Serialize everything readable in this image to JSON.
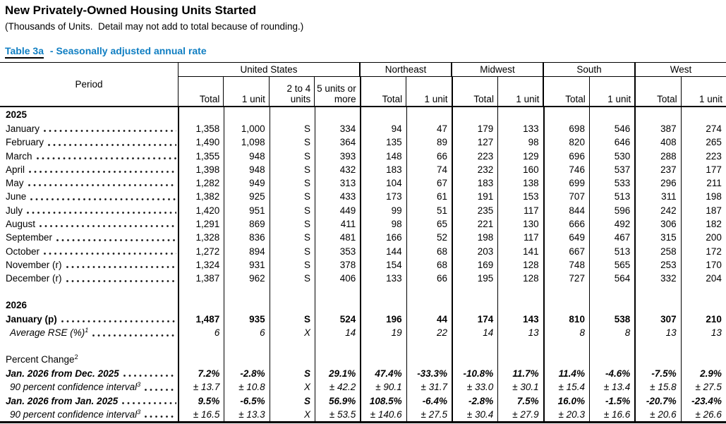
{
  "page": {
    "title": "New Privately-Owned Housing Units Started",
    "subtitle": "(Thousands of Units.  Detail may not add to total because of rounding.)",
    "table_label": "Table 3a",
    "table_label_suffix": "- Seasonally adjusted annual rate"
  },
  "colors": {
    "caption_blue": "#0f7ec2",
    "border_black": "#000000",
    "background": "#ffffff"
  },
  "header": {
    "period": "Period",
    "groups": [
      {
        "label": "United States",
        "span": 4,
        "cols": [
          "Total",
          "1 unit",
          "2 to 4 units",
          "5 units or more"
        ]
      },
      {
        "label": "Northeast",
        "span": 2,
        "cols": [
          "Total",
          "1 unit"
        ]
      },
      {
        "label": "Midwest",
        "span": 2,
        "cols": [
          "Total",
          "1 unit"
        ]
      },
      {
        "label": "South",
        "span": 2,
        "cols": [
          "Total",
          "1 unit"
        ]
      },
      {
        "label": "West",
        "span": 2,
        "cols": [
          "Total",
          "1 unit"
        ]
      }
    ]
  },
  "rows": [
    {
      "type": "section",
      "label": "2025",
      "style": "bold"
    },
    {
      "type": "data",
      "label": "January",
      "style": "normal",
      "leader": true,
      "values": [
        "1,358",
        "1,000",
        "S",
        "334",
        "94",
        "47",
        "179",
        "133",
        "698",
        "546",
        "387",
        "274"
      ]
    },
    {
      "type": "data",
      "label": "February",
      "style": "normal",
      "leader": true,
      "values": [
        "1,490",
        "1,098",
        "S",
        "364",
        "135",
        "89",
        "127",
        "98",
        "820",
        "646",
        "408",
        "265"
      ]
    },
    {
      "type": "data",
      "label": "March",
      "style": "normal",
      "leader": true,
      "values": [
        "1,355",
        "948",
        "S",
        "393",
        "148",
        "66",
        "223",
        "129",
        "696",
        "530",
        "288",
        "223"
      ]
    },
    {
      "type": "data",
      "label": "April",
      "style": "normal",
      "leader": true,
      "values": [
        "1,398",
        "948",
        "S",
        "432",
        "183",
        "74",
        "232",
        "160",
        "746",
        "537",
        "237",
        "177"
      ]
    },
    {
      "type": "data",
      "label": "May",
      "style": "normal",
      "leader": true,
      "values": [
        "1,282",
        "949",
        "S",
        "313",
        "104",
        "67",
        "183",
        "138",
        "699",
        "533",
        "296",
        "211"
      ]
    },
    {
      "type": "data",
      "label": "June",
      "style": "normal",
      "leader": true,
      "values": [
        "1,382",
        "925",
        "S",
        "433",
        "173",
        "61",
        "191",
        "153",
        "707",
        "513",
        "311",
        "198"
      ]
    },
    {
      "type": "data",
      "label": "July",
      "style": "normal",
      "leader": true,
      "values": [
        "1,420",
        "951",
        "S",
        "449",
        "99",
        "51",
        "235",
        "117",
        "844",
        "596",
        "242",
        "187"
      ]
    },
    {
      "type": "data",
      "label": "August",
      "style": "normal",
      "leader": true,
      "values": [
        "1,291",
        "869",
        "S",
        "411",
        "98",
        "65",
        "221",
        "130",
        "666",
        "492",
        "306",
        "182"
      ]
    },
    {
      "type": "data",
      "label": "September",
      "style": "normal",
      "leader": true,
      "values": [
        "1,328",
        "836",
        "S",
        "481",
        "166",
        "52",
        "198",
        "117",
        "649",
        "467",
        "315",
        "200"
      ]
    },
    {
      "type": "data",
      "label": "October",
      "style": "normal",
      "leader": true,
      "values": [
        "1,272",
        "894",
        "S",
        "353",
        "144",
        "68",
        "203",
        "141",
        "667",
        "513",
        "258",
        "172"
      ]
    },
    {
      "type": "data",
      "label": "November (r)",
      "style": "normal",
      "leader": true,
      "values": [
        "1,324",
        "931",
        "S",
        "378",
        "154",
        "68",
        "169",
        "128",
        "748",
        "565",
        "253",
        "170"
      ]
    },
    {
      "type": "data",
      "label": "December (r)",
      "style": "normal",
      "leader": true,
      "values": [
        "1,387",
        "962",
        "S",
        "406",
        "133",
        "66",
        "195",
        "128",
        "727",
        "564",
        "332",
        "204"
      ]
    },
    {
      "type": "spacer"
    },
    {
      "type": "section",
      "label": "2026",
      "style": "bold"
    },
    {
      "type": "data",
      "label": "January (p)",
      "style": "bold",
      "leader": true,
      "values": [
        "1,487",
        "935",
        "S",
        "524",
        "196",
        "44",
        "174",
        "143",
        "810",
        "538",
        "307",
        "210"
      ]
    },
    {
      "type": "data",
      "label": "Average RSE (%)",
      "sup": "1",
      "style": "italic",
      "indent": true,
      "leader": true,
      "values": [
        "6",
        "6",
        "X",
        "14",
        "19",
        "22",
        "14",
        "13",
        "8",
        "8",
        "13",
        "13"
      ]
    },
    {
      "type": "spacer"
    },
    {
      "type": "section",
      "label": "Percent Change",
      "sup": "2",
      "style": "normal"
    },
    {
      "type": "data",
      "label": "Jan. 2026 from Dec. 2025",
      "style": "bold-italic",
      "leader": true,
      "values": [
        "7.2%",
        "-2.8%",
        "S",
        "29.1%",
        "47.4%",
        "-33.3%",
        "-10.8%",
        "11.7%",
        "11.4%",
        "-4.6%",
        "-7.5%",
        "2.9%"
      ]
    },
    {
      "type": "data",
      "label": "90 percent confidence interval",
      "sup": "3",
      "style": "italic",
      "indent": true,
      "leader": true,
      "values": [
        "± 13.7",
        "± 10.8",
        "X",
        "± 42.2",
        "± 90.1",
        "± 31.7",
        "± 33.0",
        "± 30.1",
        "± 15.4",
        "± 13.4",
        "± 15.8",
        "± 27.5"
      ]
    },
    {
      "type": "data",
      "label": "Jan. 2026 from Jan. 2025",
      "style": "bold-italic",
      "leader": true,
      "values": [
        "9.5%",
        "-6.5%",
        "S",
        "56.9%",
        "108.5%",
        "-6.4%",
        "-2.8%",
        "7.5%",
        "16.0%",
        "-1.5%",
        "-20.7%",
        "-23.4%"
      ]
    },
    {
      "type": "data",
      "label": "90 percent confidence interval",
      "sup": "3",
      "style": "italic",
      "indent": true,
      "leader": true,
      "values": [
        "± 16.5",
        "± 13.3",
        "X",
        "± 53.5",
        "± 140.6",
        "± 27.5",
        "± 30.4",
        "± 27.9",
        "± 20.3",
        "± 16.6",
        "± 20.6",
        "± 26.6"
      ]
    }
  ],
  "group_separator_columns": [
    0,
    4,
    6,
    8,
    10
  ]
}
